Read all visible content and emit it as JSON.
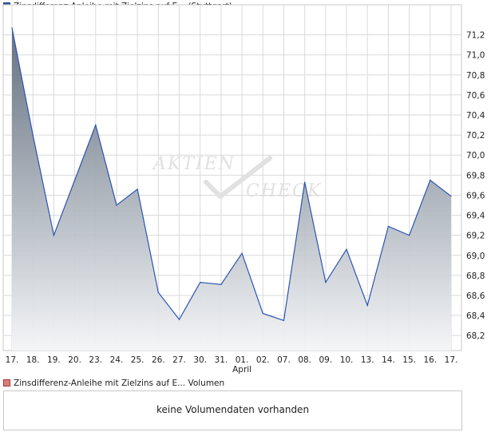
{
  "legend": {
    "price_label": "Zinsdifferenz-Anleihe mit Zielzins auf E...  (Stuttgart)",
    "volume_label": "Zinsdifferenz-Anleihe mit Zielzins auf E...  Volumen"
  },
  "volume_panel": {
    "message": "keine Volumendaten vorhanden"
  },
  "watermark": {
    "line1": "AKTIEN",
    "line2": "CHECK"
  },
  "colors": {
    "line": "#2b55b0",
    "fill_top": "#5c6a7a",
    "fill_bottom": "#f4f5f7",
    "grid": "#dadada"
  },
  "chart_data": {
    "type": "area",
    "categories": [
      "17.",
      "18.",
      "19.",
      "20.",
      "23.",
      "24.",
      "25.",
      "26.",
      "27.",
      "30.",
      "31.",
      "01.",
      "02.",
      "07.",
      "08.",
      "09.",
      "10.",
      "13.",
      "14.",
      "15.",
      "16.",
      "17."
    ],
    "month_labels": [
      {
        "index": 11,
        "label": "April"
      }
    ],
    "series": [
      {
        "values": [
          71.27,
          70.2,
          69.2,
          69.75,
          70.3,
          69.5,
          69.66,
          68.63,
          68.36,
          68.73,
          68.71,
          69.02,
          68.42,
          68.35,
          69.73,
          68.73,
          69.06,
          68.5,
          69.29,
          69.2,
          69.75,
          69.59
        ]
      }
    ],
    "yticks": [
      "68,2",
      "68,4",
      "68,6",
      "68,8",
      "69,0",
      "69,2",
      "69,4",
      "69,6",
      "69,8",
      "70,0",
      "70,2",
      "70,4",
      "70,6",
      "70,8",
      "71,0",
      "71,2"
    ],
    "ylim": [
      68.05,
      71.42
    ],
    "grid": true
  }
}
